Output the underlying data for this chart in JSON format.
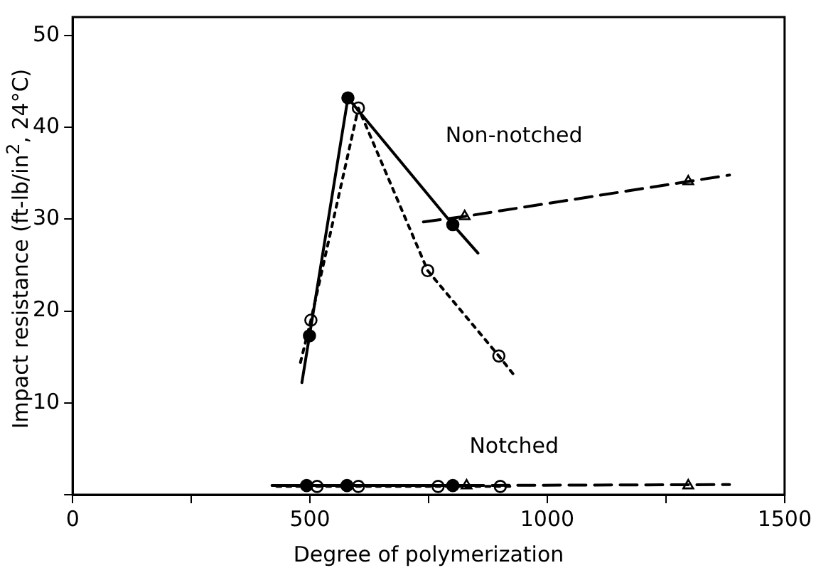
{
  "chart_data": {
    "type": "line",
    "xlabel": "Degree of polymerization",
    "ylabel": "Impact resistance (ft-lb/in$^{2}$, 24°C)",
    "xlim": [
      0,
      1500
    ],
    "ylim": [
      0,
      52
    ],
    "xticks": [
      0,
      {
        "value": 250,
        "label": null
      },
      500,
      {
        "value": 750,
        "label": null
      },
      1000,
      {
        "value": 1250,
        "label": null
      },
      1500
    ],
    "yticks": [
      {
        "value": 0,
        "label": null
      },
      10,
      20,
      30,
      40,
      50
    ],
    "grid": false,
    "legend": false,
    "series": [
      {
        "color": "#000000",
        "x": [
          483,
          499,
          580,
          801,
          854
        ],
        "values": [
          12.2,
          17.3,
          43.2,
          29.4,
          26.3
        ],
        "marker": "none",
        "line_style": "solid"
      },
      {
        "color": "#000000",
        "x": [
          480,
          502,
          602,
          748,
          898,
          935
        ],
        "values": [
          14.4,
          19.0,
          42.1,
          24.4,
          15.1,
          12.7
        ],
        "marker": "none",
        "line_style": "dotted"
      },
      {
        "color": "#000000",
        "x": [
          739,
          826,
          1297,
          1384
        ],
        "values": [
          29.7,
          30.3,
          34.1,
          34.8
        ],
        "marker": "none",
        "line_style": "dashed"
      },
      {
        "color": "#000000",
        "x": [
          420,
          840
        ],
        "values": [
          1.0,
          1.0
        ],
        "marker": "none",
        "line_style": "solid"
      },
      {
        "color": "#000000",
        "x": [
          430,
          930
        ],
        "values": [
          0.9,
          0.9
        ],
        "marker": "none",
        "line_style": "dotted"
      },
      {
        "color": "#000000",
        "x": [
          830,
          1384
        ],
        "values": [
          1.0,
          1.1
        ],
        "marker": "none",
        "line_style": "dashed"
      },
      {
        "type": "scatter",
        "color": "#000000",
        "colors": [
          "#000000",
          "#000000",
          "#000000",
          "#000000",
          "#000000",
          "#000000"
        ],
        "x": [
          499,
          580,
          801,
          493,
          578,
          801
        ],
        "values": [
          17.3,
          43.2,
          29.4,
          1.0,
          1.0,
          1.0
        ],
        "marker": "circle"
      },
      {
        "type": "scatter",
        "color": "#000000",
        "colors": [
          "#ffffff",
          "#ffffff",
          "#ffffff",
          "#ffffff",
          "#ffffff",
          "#ffffff",
          "#ffffff",
          "#ffffff"
        ],
        "x": [
          502,
          602,
          748,
          898,
          515,
          602,
          770,
          901
        ],
        "values": [
          19.0,
          42.1,
          24.4,
          15.1,
          0.9,
          0.9,
          0.9,
          0.9
        ],
        "marker": "circle"
      },
      {
        "type": "scatter",
        "color": "#000000",
        "colors": [
          "#ffffff",
          "#ffffff",
          "#ffffff",
          "#ffffff"
        ],
        "x": [
          826,
          1297,
          830,
          1297
        ],
        "values": [
          30.3,
          34.1,
          1.0,
          1.0
        ],
        "marker": "triangle"
      }
    ],
    "annotations": [
      "Non-notched",
      "Notched"
    ]
  }
}
